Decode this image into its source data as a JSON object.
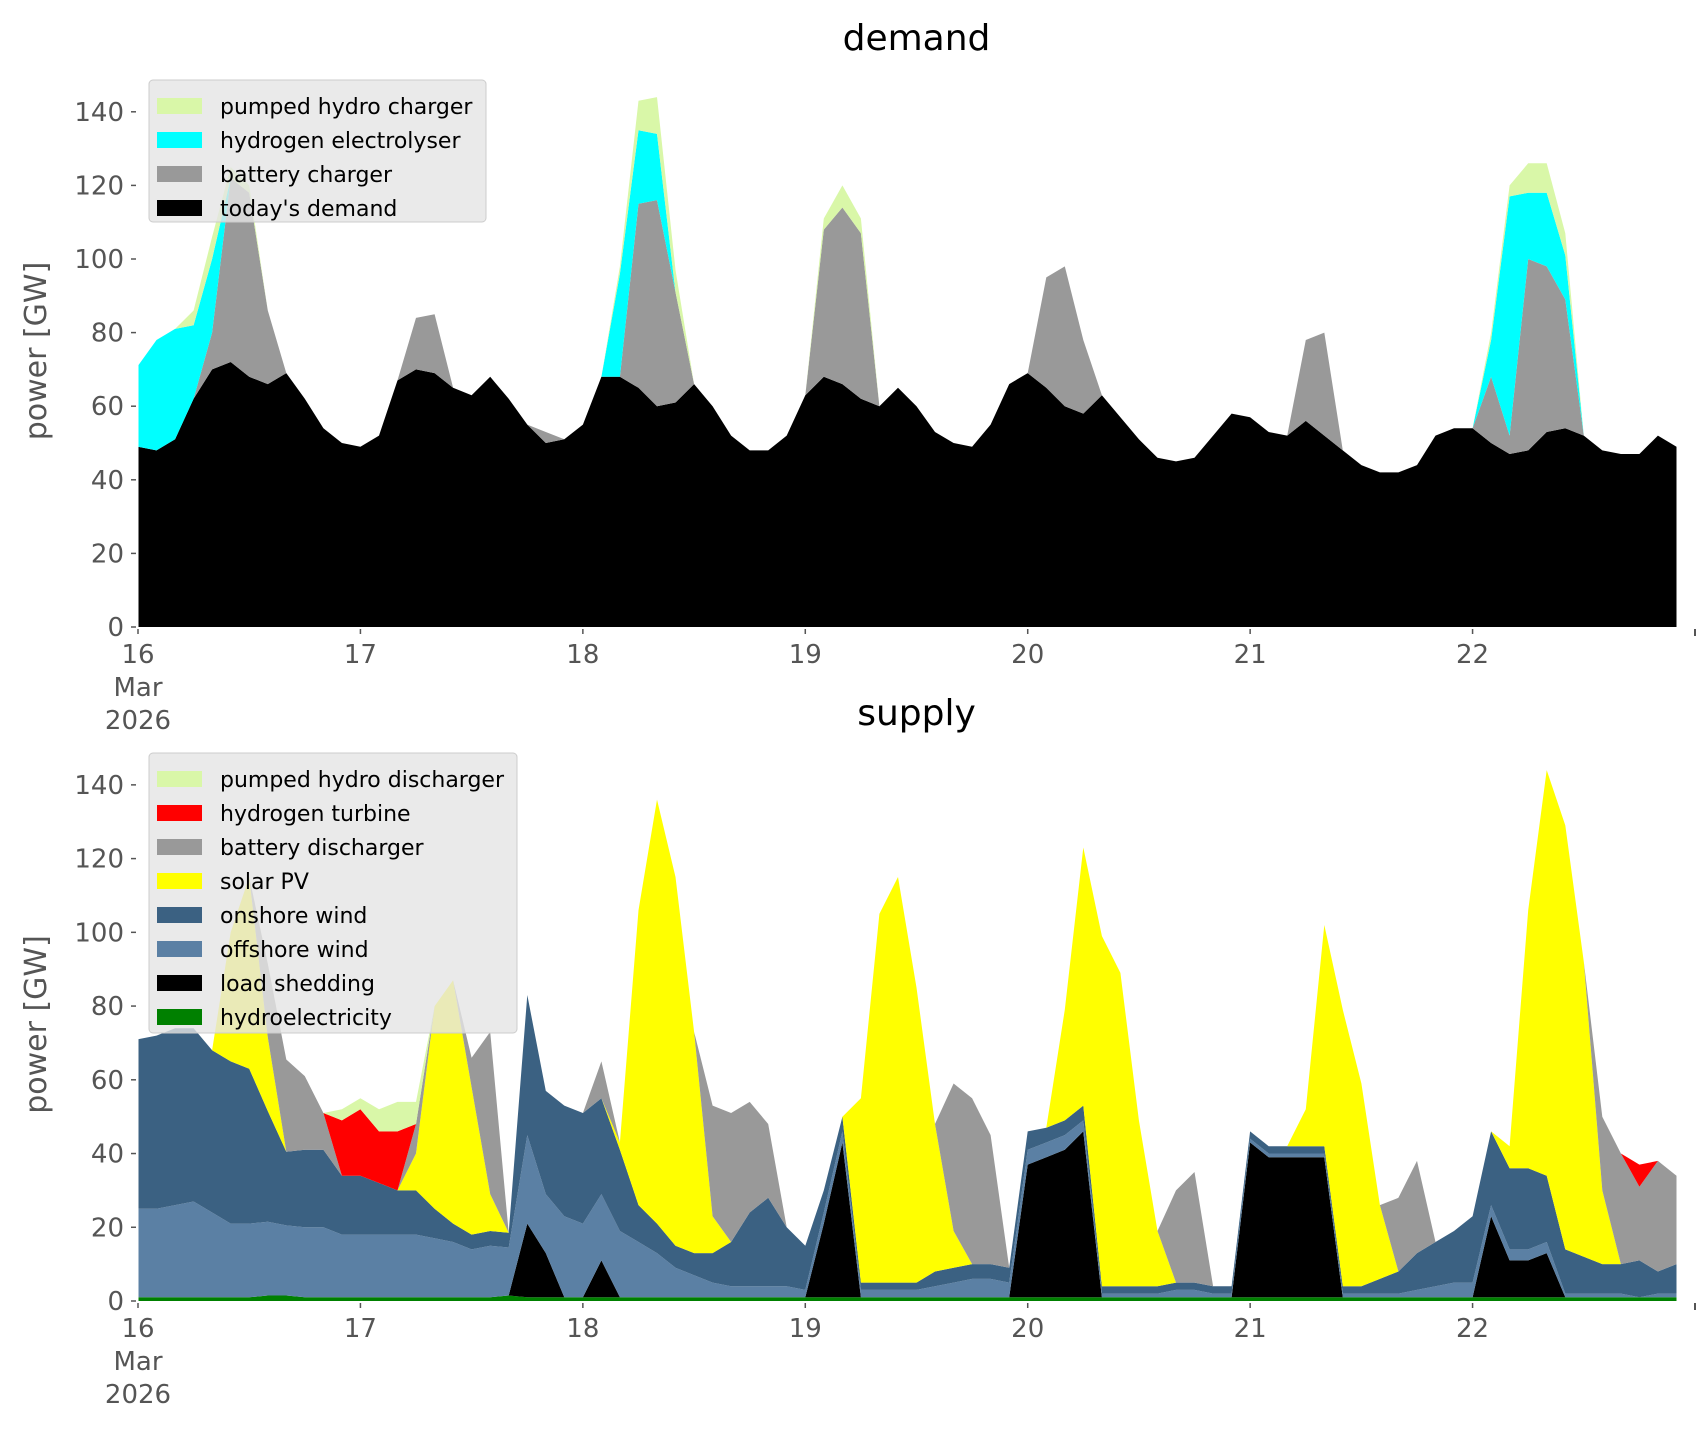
{
  "chart_data": [
    {
      "type": "area",
      "stacked": true,
      "title": "demand",
      "xlabel": "",
      "ylabel": "power [GW]",
      "ylim": [
        0,
        150
      ],
      "yticks": [
        0,
        20,
        40,
        60,
        80,
        100,
        120,
        140
      ],
      "xticks": [
        {
          "day": 0,
          "label": [
            "16",
            "Mar",
            "2026"
          ]
        },
        {
          "day": 1,
          "label": [
            "17"
          ]
        },
        {
          "day": 2,
          "label": [
            "18"
          ]
        },
        {
          "day": 3,
          "label": [
            "19"
          ]
        },
        {
          "day": 4,
          "label": [
            "20"
          ]
        },
        {
          "day": 5,
          "label": [
            "21"
          ]
        },
        {
          "day": 6,
          "label": [
            "22"
          ]
        }
      ],
      "x_start": "2026-03-16 00:00",
      "x_step_hours": 2,
      "legend_position": "top-left",
      "grid": false,
      "series": [
        {
          "name": "today's demand",
          "color": "#000000",
          "values": [
            49,
            48,
            51,
            62,
            70,
            72,
            68,
            66,
            69,
            62,
            54,
            50,
            49,
            52,
            67,
            70,
            69,
            65,
            63,
            68,
            62,
            55,
            50,
            51,
            55,
            68,
            68,
            65,
            60,
            61,
            66,
            60,
            52,
            48,
            48,
            52,
            63,
            68,
            66,
            62,
            60,
            65,
            60,
            53,
            50,
            49,
            55,
            66,
            69,
            65,
            60,
            58,
            63,
            57,
            51,
            46,
            45,
            46,
            52,
            58,
            57,
            53,
            52,
            56,
            52,
            48,
            44,
            42,
            42,
            44,
            52,
            54,
            54,
            50,
            47,
            48,
            53,
            54,
            52,
            48,
            47,
            47,
            52,
            49
          ]
        },
        {
          "name": "battery charger",
          "color": "#999999",
          "values": [
            0,
            0,
            0,
            0,
            10,
            50,
            50,
            20,
            0,
            0,
            0,
            0,
            0,
            0,
            0,
            14,
            16,
            0,
            0,
            0,
            0,
            0,
            3,
            0,
            0,
            0,
            0,
            50,
            56,
            30,
            0,
            0,
            0,
            0,
            0,
            0,
            0,
            40,
            48,
            45,
            0,
            0,
            0,
            0,
            0,
            0,
            0,
            0,
            0,
            30,
            38,
            20,
            0,
            0,
            0,
            0,
            0,
            0,
            0,
            0,
            0,
            0,
            0,
            22,
            28,
            0,
            0,
            0,
            0,
            0,
            0,
            0,
            0,
            18,
            5,
            52,
            45,
            35,
            0,
            0,
            0,
            0,
            0,
            0
          ]
        },
        {
          "name": "hydrogen electrolyser",
          "color": "#00ffff",
          "values": [
            22,
            30,
            30,
            20,
            20,
            0,
            0,
            0,
            0,
            0,
            0,
            0,
            0,
            0,
            0,
            0,
            0,
            0,
            0,
            0,
            0,
            0,
            0,
            0,
            0,
            0,
            28,
            20,
            18,
            0,
            0,
            0,
            0,
            0,
            0,
            0,
            0,
            0,
            0,
            0,
            0,
            0,
            0,
            0,
            0,
            0,
            0,
            0,
            0,
            0,
            0,
            0,
            0,
            0,
            0,
            0,
            0,
            0,
            0,
            0,
            0,
            0,
            0,
            0,
            0,
            0,
            0,
            0,
            0,
            0,
            0,
            0,
            0,
            10,
            65,
            18,
            20,
            12,
            0,
            0,
            0,
            0,
            0,
            0
          ]
        },
        {
          "name": "pumped hydro charger",
          "color": "#d9f7a8",
          "values": [
            0,
            0,
            0,
            4,
            6,
            3,
            2,
            0,
            0,
            0,
            0,
            0,
            0,
            0,
            0,
            0,
            0,
            0,
            0,
            0,
            0,
            0,
            0,
            0,
            0,
            0,
            2,
            8,
            10,
            6,
            0,
            0,
            0,
            0,
            0,
            0,
            0,
            3,
            6,
            4,
            0,
            0,
            0,
            0,
            0,
            0,
            0,
            0,
            0,
            0,
            0,
            0,
            0,
            0,
            0,
            0,
            0,
            0,
            0,
            0,
            0,
            0,
            0,
            0,
            0,
            0,
            0,
            0,
            0,
            0,
            0,
            0,
            0,
            2,
            3,
            8,
            8,
            6,
            0,
            0,
            0,
            0,
            0,
            0
          ]
        }
      ]
    },
    {
      "type": "area",
      "stacked": true,
      "title": "supply",
      "xlabel": "",
      "ylabel": "power [GW]",
      "ylim": [
        0,
        150
      ],
      "yticks": [
        0,
        20,
        40,
        60,
        80,
        100,
        120,
        140
      ],
      "xticks": [
        {
          "day": 0,
          "label": [
            "16",
            "Mar",
            "2026"
          ]
        },
        {
          "day": 1,
          "label": [
            "17"
          ]
        },
        {
          "day": 2,
          "label": [
            "18"
          ]
        },
        {
          "day": 3,
          "label": [
            "19"
          ]
        },
        {
          "day": 4,
          "label": [
            "20"
          ]
        },
        {
          "day": 5,
          "label": [
            "21"
          ]
        },
        {
          "day": 6,
          "label": [
            "22"
          ]
        }
      ],
      "x_start": "2026-03-16 00:00",
      "x_step_hours": 2,
      "legend_position": "top-left",
      "grid": false,
      "series": [
        {
          "name": "hydroelectricity",
          "color": "#008000",
          "values": [
            1,
            1,
            1,
            1,
            1,
            1,
            1,
            1.5,
            1.5,
            1,
            1,
            1,
            1,
            1,
            1,
            1,
            1,
            1,
            1,
            1,
            1.5,
            1,
            1,
            1,
            1,
            1,
            1,
            1,
            1,
            1,
            1,
            1,
            1,
            1,
            1,
            1,
            1,
            1,
            1,
            1,
            1,
            1,
            1,
            1,
            1,
            1,
            1,
            1,
            1,
            1,
            1,
            1,
            1,
            1,
            1,
            1,
            1,
            1,
            1,
            1,
            1,
            1,
            1,
            1,
            1,
            1,
            1,
            1,
            1,
            1,
            1,
            1,
            1,
            1,
            1,
            1,
            1,
            1,
            1,
            1,
            1,
            1,
            1,
            1
          ]
        },
        {
          "name": "load shedding",
          "color": "#000000",
          "values": [
            0,
            0,
            0,
            0,
            0,
            0,
            0,
            0,
            0,
            0,
            0,
            0,
            0,
            0,
            0,
            0,
            0,
            0,
            0,
            0,
            0,
            20,
            12,
            0,
            0,
            10,
            0,
            0,
            0,
            0,
            0,
            0,
            0,
            0,
            0,
            0,
            0,
            20,
            42,
            0,
            0,
            0,
            0,
            0,
            0,
            0,
            0,
            0,
            36,
            38,
            40,
            45,
            0,
            0,
            0,
            0,
            0,
            0,
            0,
            0,
            42,
            38,
            38,
            38,
            38,
            0,
            0,
            0,
            0,
            0,
            0,
            0,
            0,
            22,
            10,
            10,
            12,
            0,
            0,
            0,
            0,
            0,
            0,
            0
          ]
        },
        {
          "name": "offshore wind",
          "color": "#5b80a4",
          "values": [
            24,
            24,
            25,
            26,
            23,
            20,
            20,
            20,
            19,
            19,
            19,
            17,
            17,
            17,
            17,
            17,
            16,
            15,
            13,
            14,
            13,
            24,
            16,
            22,
            20,
            18,
            18,
            15,
            12,
            8,
            6,
            4,
            3,
            3,
            3,
            3,
            2,
            3,
            3,
            2,
            2,
            2,
            2,
            3,
            4,
            5,
            5,
            4,
            4,
            4,
            4,
            3,
            1,
            1,
            1,
            1,
            2,
            2,
            1,
            1,
            1,
            1,
            1,
            1,
            1,
            1,
            1,
            1,
            1,
            2,
            3,
            4,
            4,
            3,
            3,
            3,
            3,
            1,
            1,
            1,
            1,
            0,
            1,
            1
          ]
        },
        {
          "name": "onshore wind",
          "color": "#3b6182",
          "values": [
            46,
            47,
            48,
            47,
            44,
            44,
            42,
            30,
            20,
            21,
            21,
            16,
            16,
            14,
            12,
            12,
            8,
            5,
            4,
            4,
            4,
            38,
            28,
            30,
            30,
            26,
            22,
            10,
            8,
            6,
            6,
            8,
            12,
            20,
            24,
            16,
            12,
            6,
            4,
            2,
            2,
            2,
            2,
            4,
            4,
            4,
            4,
            4,
            5,
            4,
            4,
            4,
            2,
            2,
            2,
            2,
            2,
            2,
            2,
            2,
            2,
            2,
            2,
            2,
            2,
            2,
            2,
            4,
            6,
            10,
            12,
            14,
            18,
            20,
            22,
            22,
            18,
            12,
            10,
            8,
            8,
            10,
            6,
            8
          ]
        },
        {
          "name": "solar PV",
          "color": "#ffff00",
          "values": [
            0,
            0,
            0,
            0,
            0,
            35,
            52,
            20,
            0,
            0,
            0,
            0,
            0,
            0,
            0,
            10,
            55,
            66,
            40,
            10,
            0,
            0,
            0,
            0,
            0,
            0,
            2,
            80,
            115,
            100,
            60,
            10,
            0,
            0,
            0,
            0,
            0,
            0,
            0,
            50,
            100,
            110,
            80,
            40,
            10,
            0,
            0,
            0,
            0,
            0,
            30,
            70,
            95,
            85,
            45,
            15,
            0,
            0,
            0,
            0,
            0,
            0,
            0,
            10,
            60,
            75,
            55,
            20,
            0,
            0,
            0,
            0,
            0,
            0,
            6,
            70,
            110,
            115,
            80,
            20,
            0,
            0,
            0,
            0
          ]
        },
        {
          "name": "battery discharger",
          "color": "#999999",
          "values": [
            0,
            0,
            0,
            0,
            0,
            0,
            0,
            20,
            25,
            20,
            10,
            0,
            0,
            0,
            0,
            8,
            0,
            0,
            8,
            44,
            0,
            0,
            0,
            0,
            0,
            10,
            0,
            0,
            0,
            0,
            0,
            30,
            35,
            30,
            20,
            0,
            0,
            0,
            0,
            0,
            0,
            0,
            0,
            0,
            40,
            45,
            35,
            0,
            0,
            0,
            0,
            0,
            0,
            0,
            0,
            0,
            25,
            30,
            0,
            0,
            0,
            0,
            0,
            0,
            0,
            0,
            0,
            0,
            20,
            25,
            0,
            0,
            0,
            0,
            0,
            0,
            0,
            0,
            0,
            20,
            30,
            20,
            30,
            24
          ]
        },
        {
          "name": "hydrogen turbine",
          "color": "#ff0000",
          "values": [
            0,
            0,
            0,
            0,
            0,
            0,
            0,
            0,
            0,
            0,
            0,
            15,
            18,
            14,
            16,
            0,
            0,
            0,
            0,
            0,
            0,
            0,
            0,
            0,
            0,
            0,
            0,
            0,
            0,
            0,
            0,
            0,
            0,
            0,
            0,
            0,
            0,
            0,
            0,
            0,
            0,
            0,
            0,
            0,
            0,
            0,
            0,
            0,
            0,
            0,
            0,
            0,
            0,
            0,
            0,
            0,
            0,
            0,
            0,
            0,
            0,
            0,
            0,
            0,
            0,
            0,
            0,
            0,
            0,
            0,
            0,
            0,
            0,
            0,
            0,
            0,
            0,
            0,
            0,
            0,
            0,
            6,
            0,
            0
          ]
        },
        {
          "name": "pumped hydro discharger",
          "color": "#d9f7a8",
          "values": [
            0,
            0,
            0,
            0,
            0,
            0,
            0,
            0,
            0,
            0,
            0,
            3,
            3,
            6,
            8,
            6,
            0,
            0,
            0,
            0,
            0,
            0,
            0,
            0,
            0,
            0,
            0,
            0,
            0,
            0,
            0,
            0,
            0,
            0,
            0,
            0,
            0,
            0,
            0,
            0,
            0,
            0,
            0,
            0,
            0,
            0,
            0,
            0,
            0,
            0,
            0,
            0,
            0,
            0,
            0,
            0,
            0,
            0,
            0,
            0,
            0,
            0,
            0,
            0,
            0,
            0,
            0,
            0,
            0,
            0,
            0,
            0,
            0,
            0,
            0,
            0,
            0,
            0,
            0,
            0,
            0,
            0,
            0,
            0
          ]
        }
      ]
    }
  ]
}
